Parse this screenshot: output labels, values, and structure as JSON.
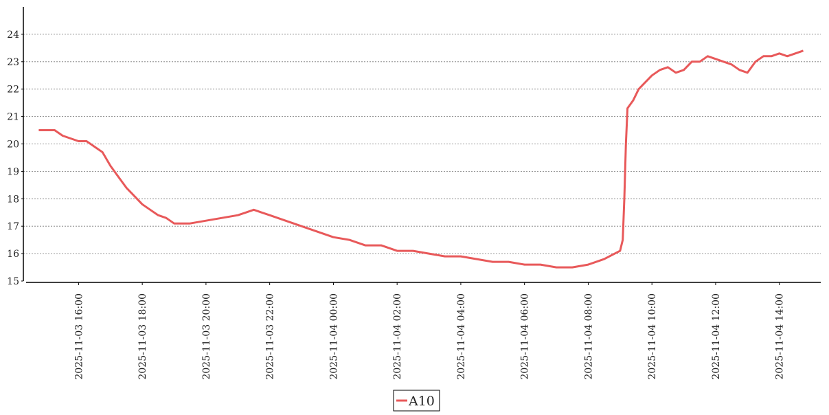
{
  "chart_data": {
    "type": "line",
    "x": [
      "2025-11-03 14:45",
      "2025-11-03 15:00",
      "2025-11-03 15:15",
      "2025-11-03 15:30",
      "2025-11-03 15:45",
      "2025-11-03 16:00",
      "2025-11-03 16:15",
      "2025-11-03 16:30",
      "2025-11-03 16:45",
      "2025-11-03 17:00",
      "2025-11-03 17:15",
      "2025-11-03 17:30",
      "2025-11-03 17:45",
      "2025-11-03 18:00",
      "2025-11-03 18:15",
      "2025-11-03 18:30",
      "2025-11-03 18:45",
      "2025-11-03 19:00",
      "2025-11-03 19:30",
      "2025-11-03 20:00",
      "2025-11-03 20:30",
      "2025-11-03 21:00",
      "2025-11-03 21:15",
      "2025-11-03 21:30",
      "2025-11-03 21:45",
      "2025-11-03 22:00",
      "2025-11-03 22:30",
      "2025-11-03 23:00",
      "2025-11-03 23:30",
      "2025-11-04 00:00",
      "2025-11-04 00:30",
      "2025-11-04 01:00",
      "2025-11-04 01:30",
      "2025-11-04 02:00",
      "2025-11-04 02:30",
      "2025-11-04 03:00",
      "2025-11-04 03:30",
      "2025-11-04 04:00",
      "2025-11-04 04:30",
      "2025-11-04 05:00",
      "2025-11-04 05:30",
      "2025-11-04 06:00",
      "2025-11-04 06:30",
      "2025-11-04 07:00",
      "2025-11-04 07:30",
      "2025-11-04 08:00",
      "2025-11-04 08:30",
      "2025-11-04 09:00",
      "2025-11-04 09:05",
      "2025-11-04 09:08",
      "2025-11-04 09:11",
      "2025-11-04 09:14",
      "2025-11-04 09:25",
      "2025-11-04 09:35",
      "2025-11-04 09:45",
      "2025-11-04 10:00",
      "2025-11-04 10:15",
      "2025-11-04 10:30",
      "2025-11-04 10:45",
      "2025-11-04 11:00",
      "2025-11-04 11:15",
      "2025-11-04 11:30",
      "2025-11-04 11:45",
      "2025-11-04 12:00",
      "2025-11-04 12:15",
      "2025-11-04 12:30",
      "2025-11-04 12:45",
      "2025-11-04 13:00",
      "2025-11-04 13:15",
      "2025-11-04 13:30",
      "2025-11-04 13:45",
      "2025-11-04 14:00",
      "2025-11-04 14:15",
      "2025-11-04 14:30",
      "2025-11-04 14:45"
    ],
    "series": [
      {
        "name": "A10",
        "color": "#e8595a",
        "values": [
          20.5,
          20.5,
          20.5,
          20.3,
          20.2,
          20.1,
          20.1,
          19.9,
          19.7,
          19.2,
          18.8,
          18.4,
          18.1,
          17.8,
          17.6,
          17.4,
          17.3,
          17.1,
          17.1,
          17.2,
          17.3,
          17.4,
          17.5,
          17.6,
          17.5,
          17.4,
          17.2,
          17.0,
          16.8,
          16.6,
          16.5,
          16.3,
          16.3,
          16.1,
          16.1,
          16.0,
          15.9,
          15.9,
          15.8,
          15.7,
          15.7,
          15.6,
          15.6,
          15.5,
          15.5,
          15.6,
          15.8,
          16.1,
          16.5,
          18.0,
          20.0,
          21.3,
          21.6,
          22.0,
          22.2,
          22.5,
          22.7,
          22.8,
          22.6,
          22.7,
          23.0,
          23.0,
          23.2,
          23.1,
          23.0,
          22.9,
          22.7,
          22.6,
          23.0,
          23.2,
          23.2,
          23.3,
          23.2,
          23.3,
          23.4
        ]
      }
    ],
    "xlim": [
      "2025-11-03 14:16",
      "2025-11-04 15:18"
    ],
    "xticks": [
      "2025-11-03 16:00",
      "2025-11-03 18:00",
      "2025-11-03 20:00",
      "2025-11-03 22:00",
      "2025-11-04 00:00",
      "2025-11-04 02:00",
      "2025-11-04 04:00",
      "2025-11-04 06:00",
      "2025-11-04 08:00",
      "2025-11-04 10:00",
      "2025-11-04 12:00",
      "2025-11-04 14:00"
    ],
    "ylim": [
      15,
      25
    ],
    "yticks": [
      15,
      16,
      17,
      18,
      19,
      20,
      21,
      22,
      23,
      24
    ],
    "grid": true,
    "legend": "bottom"
  }
}
